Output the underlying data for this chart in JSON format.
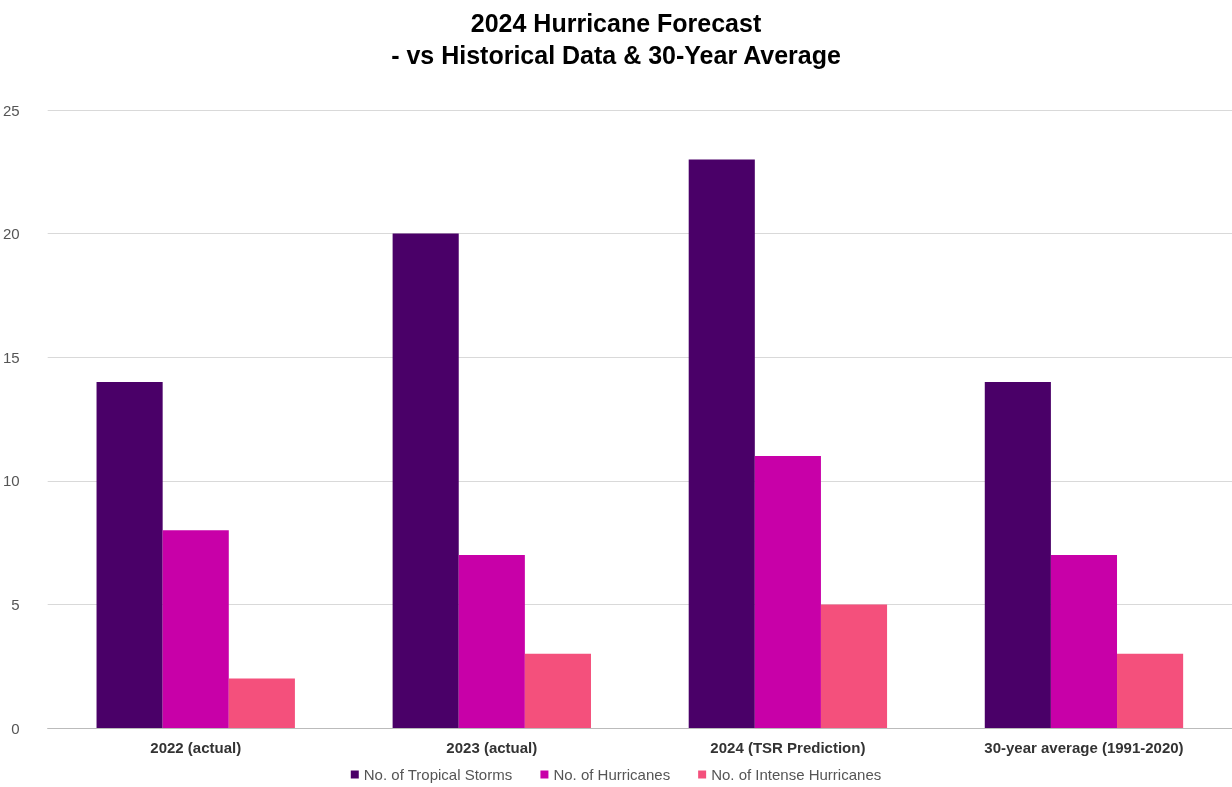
{
  "chart_data": {
    "type": "bar",
    "title": "2024 Hurricane Forecast\n- vs Historical Data & 30-Year Average",
    "categories": [
      "2022 (actual)",
      "2023 (actual)",
      "2024 (TSR Prediction)",
      "30-year average (1991-2020)"
    ],
    "series": [
      {
        "name": "No. of Tropical Storms",
        "color": "#4a0068",
        "values": [
          14,
          20,
          23,
          14
        ]
      },
      {
        "name": "No. of Hurricanes",
        "color": "#c800a8",
        "values": [
          8,
          7,
          11,
          7
        ]
      },
      {
        "name": "No. of Intense Hurricanes",
        "color": "#f4507c",
        "values": [
          2,
          3,
          5,
          3
        ]
      }
    ],
    "ylim": [
      0,
      25
    ],
    "yticks": [
      0,
      5,
      10,
      15,
      20,
      25
    ],
    "grid": "y",
    "legend": "bottom"
  }
}
